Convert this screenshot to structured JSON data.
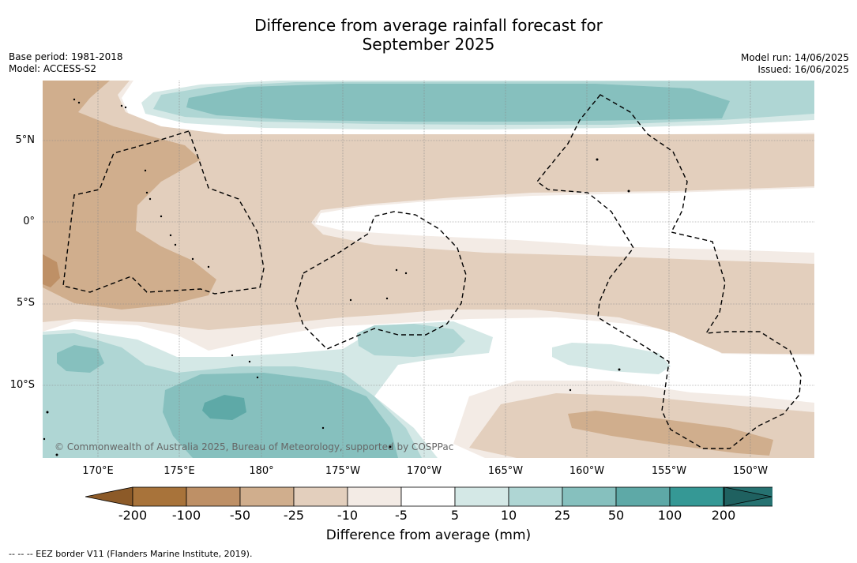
{
  "title_line1": "Difference from average rainfall forecast for",
  "title_line2": "September 2025",
  "base_period": "Base period: 1981-2018",
  "model": "Model: ACCESS-S2",
  "model_run": "Model run: 14/06/2025",
  "issued": "Issued: 16/06/2025",
  "lat_labels": [
    "5°N",
    "0°",
    "5°S",
    "10°S"
  ],
  "lon_labels": [
    "170°E",
    "175°E",
    "180°",
    "175°W",
    "170°W",
    "165°W",
    "160°W",
    "155°W",
    "150°W"
  ],
  "copyright": "© Commonwealth of Australia 2025, Bureau of Meteorology, supported by COSPPac",
  "colorbar": {
    "title": "Difference from average (mm)",
    "tick_labels": [
      "-200",
      "-100",
      "-50",
      "-25",
      "-10",
      "-5",
      "5",
      "10",
      "25",
      "50",
      "100",
      "200"
    ],
    "colors": [
      "#a8733a",
      "#be9066",
      "#d0ae8d",
      "#e3cfbd",
      "#f3ebe5",
      "#ffffff",
      "#d4e8e6",
      "#afd6d4",
      "#86c0be",
      "#5ea9a7",
      "#359895",
      "#267271"
    ],
    "extend_low_color": "#8c5a28",
    "extend_high_color": "#1f6160"
  },
  "footnote": "--  --  -- EEZ border V11 (Flanders Marine Institute, 2019)."
}
